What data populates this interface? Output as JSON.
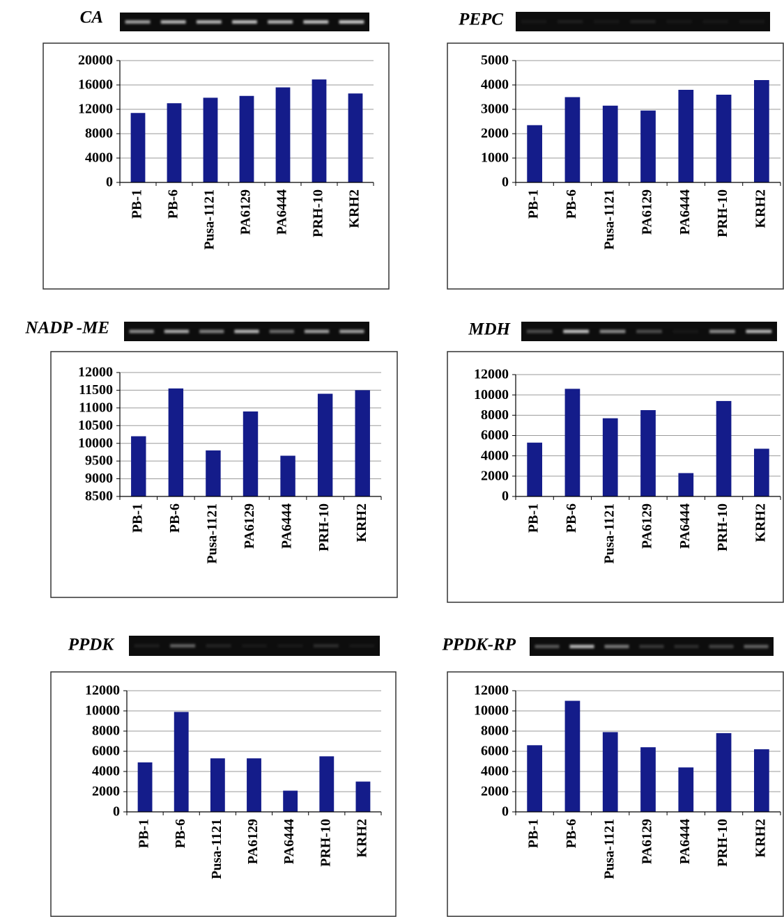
{
  "chart_data": [
    {
      "type": "bar",
      "title": "CA",
      "categories": [
        "PB-1",
        "PB-6",
        "Pusa-1121",
        "PA6129",
        "PA6444",
        "PRH-10",
        "KRH2"
      ],
      "values": [
        11400,
        13000,
        13900,
        14200,
        15600,
        16900,
        14600
      ],
      "color": "#141c8a",
      "ylim": [
        0,
        20000
      ],
      "yticks": [
        0,
        4000,
        8000,
        12000,
        16000,
        20000
      ],
      "grid": true
    },
    {
      "type": "bar",
      "title": "PEPC",
      "categories": [
        "PB-1",
        "PB-6",
        "Pusa-1121",
        "PA6129",
        "PA6444",
        "PRH-10",
        "KRH2"
      ],
      "values": [
        2350,
        3500,
        3150,
        2950,
        3800,
        3600,
        4200
      ],
      "color": "#141c8a",
      "ylim": [
        0,
        5000
      ],
      "yticks": [
        0,
        1000,
        2000,
        3000,
        4000,
        5000
      ],
      "grid": true
    },
    {
      "type": "bar",
      "title": "NADP -ME",
      "categories": [
        "PB-1",
        "PB-6",
        "Pusa-1121",
        "PA6129",
        "PA6444",
        "PRH-10",
        "KRH2"
      ],
      "values": [
        10200,
        11550,
        9800,
        10900,
        9650,
        11400,
        11500
      ],
      "color": "#141c8a",
      "ylim": [
        8500,
        12000
      ],
      "yticks": [
        8500,
        9000,
        9500,
        10000,
        10500,
        11000,
        11500,
        12000
      ],
      "grid": true
    },
    {
      "type": "bar",
      "title": "MDH",
      "categories": [
        "PB-1",
        "PB-6",
        "Pusa-1121",
        "PA6129",
        "PA6444",
        "PRH-10",
        "KRH2"
      ],
      "values": [
        5300,
        10600,
        7700,
        8500,
        2300,
        9400,
        4700
      ],
      "color": "#141c8a",
      "ylim": [
        0,
        12000
      ],
      "yticks": [
        0,
        2000,
        4000,
        6000,
        8000,
        10000,
        12000
      ],
      "grid": true
    },
    {
      "type": "bar",
      "title": "PPDK",
      "categories": [
        "PB-1",
        "PB-6",
        "Pusa-1121",
        "PA6129",
        "PA6444",
        "PRH-10",
        "KRH2"
      ],
      "values": [
        4900,
        9900,
        5300,
        5300,
        2100,
        5500,
        3000
      ],
      "color": "#141c8a",
      "ylim": [
        0,
        12000
      ],
      "yticks": [
        0,
        2000,
        4000,
        6000,
        8000,
        10000,
        12000
      ],
      "grid": true
    },
    {
      "type": "bar",
      "title": "PPDK-RP",
      "categories": [
        "PB-1",
        "PB-6",
        "Pusa-1121",
        "PA6129",
        "PA6444",
        "PRH-10",
        "KRH2"
      ],
      "values": [
        6600,
        11000,
        7900,
        6400,
        4400,
        7800,
        6200
      ],
      "color": "#141c8a",
      "ylim": [
        0,
        12000
      ],
      "yticks": [
        0,
        2000,
        4000,
        6000,
        8000,
        10000,
        12000
      ],
      "grid": true
    }
  ]
}
